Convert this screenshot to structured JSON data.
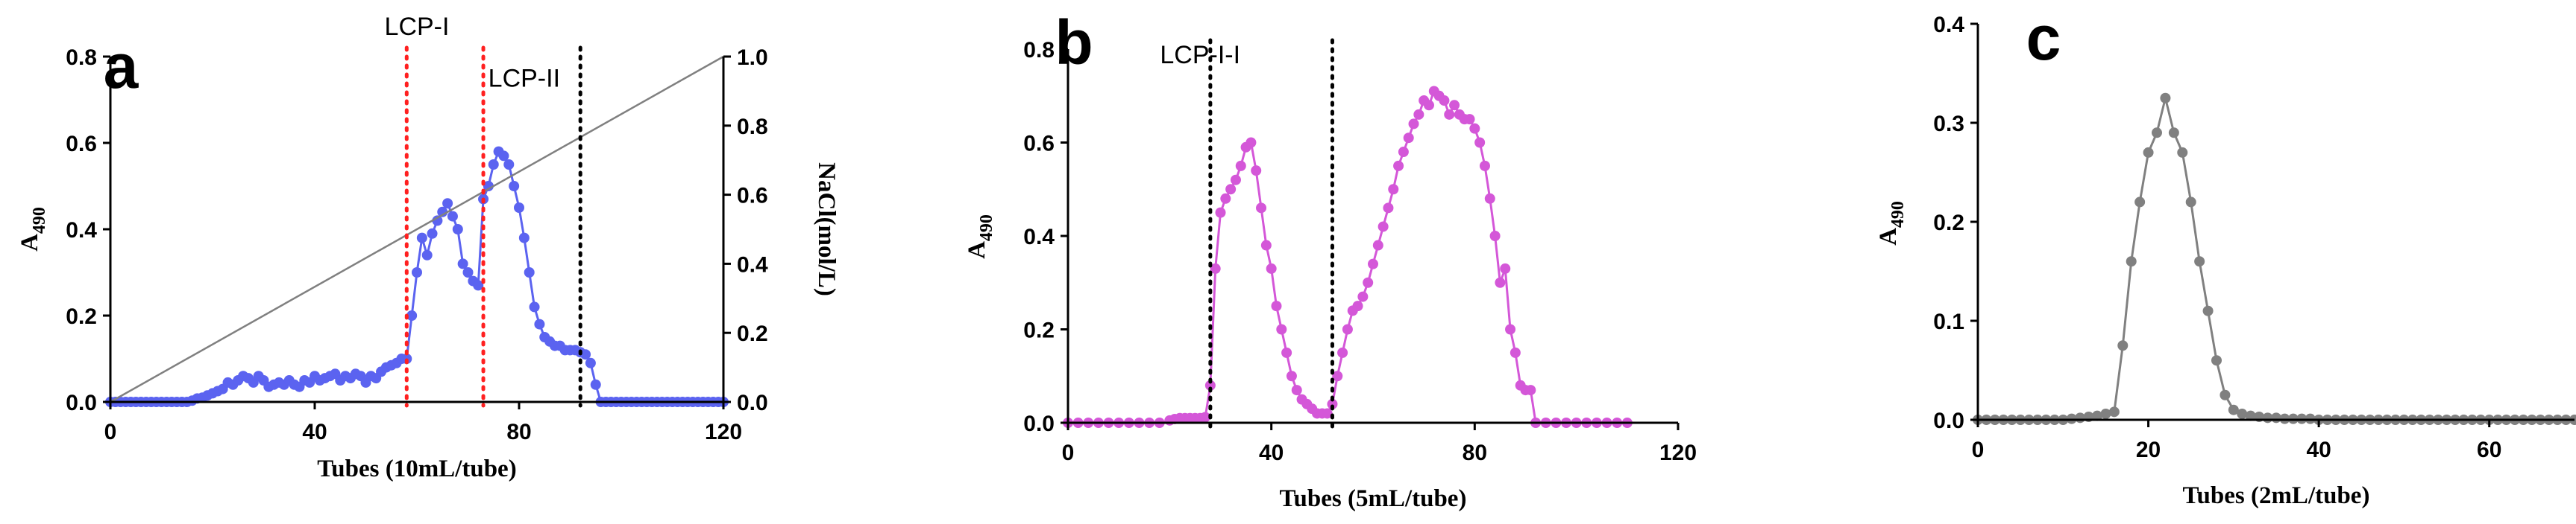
{
  "chart_data": [
    {
      "panel": "a",
      "type": "line",
      "title": "",
      "xlabel": "Tubes (10mL/tube)",
      "ylabel": "A",
      "ylabel_sub": "490",
      "y2label": "NaCl(mol/L)",
      "xlim": [
        0,
        120
      ],
      "ylim": [
        0,
        0.8
      ],
      "y2lim": [
        0,
        1.0
      ],
      "xticks": [
        "0",
        "40",
        "80",
        "120"
      ],
      "yticks": [
        "0.0",
        "0.2",
        "0.4",
        "0.6",
        "0.8"
      ],
      "y2ticks": [
        "0.0",
        "0.2",
        "0.4",
        "0.6",
        "0.8",
        "1.0"
      ],
      "series": [
        {
          "name": "A490",
          "color": "#5b63f0",
          "marker": "circle",
          "x": [
            0,
            1,
            2,
            3,
            4,
            5,
            6,
            7,
            8,
            9,
            10,
            11,
            12,
            13,
            14,
            15,
            16,
            17,
            18,
            19,
            20,
            21,
            22,
            23,
            24,
            25,
            26,
            27,
            28,
            29,
            30,
            31,
            32,
            33,
            34,
            35,
            36,
            37,
            38,
            39,
            40,
            41,
            42,
            43,
            44,
            45,
            46,
            47,
            48,
            49,
            50,
            51,
            52,
            53,
            54,
            55,
            56,
            57,
            58,
            59,
            60,
            61,
            62,
            63,
            64,
            65,
            66,
            67,
            68,
            69,
            70,
            71,
            72,
            73,
            74,
            75,
            76,
            77,
            78,
            79,
            80,
            81,
            82,
            83,
            84,
            85,
            86,
            87,
            88,
            89,
            90,
            91,
            92,
            93,
            94,
            95,
            96,
            97,
            98,
            99,
            100,
            101,
            102,
            103,
            104,
            105,
            106,
            107,
            108,
            109,
            110,
            111,
            112,
            113,
            114,
            115,
            116,
            117,
            118,
            119,
            120
          ],
          "values": [
            0,
            0,
            0,
            0,
            0,
            0,
            0,
            0,
            0,
            0,
            0,
            0,
            0,
            0,
            0,
            0,
            0.003,
            0.008,
            0.01,
            0.015,
            0.02,
            0.025,
            0.03,
            0.045,
            0.04,
            0.05,
            0.06,
            0.055,
            0.045,
            0.06,
            0.05,
            0.035,
            0.04,
            0.045,
            0.04,
            0.05,
            0.04,
            0.035,
            0.05,
            0.045,
            0.06,
            0.05,
            0.055,
            0.06,
            0.065,
            0.05,
            0.06,
            0.055,
            0.065,
            0.06,
            0.045,
            0.06,
            0.055,
            0.07,
            0.08,
            0.085,
            0.09,
            0.1,
            0.1,
            0.2,
            0.3,
            0.38,
            0.34,
            0.39,
            0.42,
            0.44,
            0.46,
            0.43,
            0.4,
            0.32,
            0.3,
            0.28,
            0.27,
            0.47,
            0.5,
            0.55,
            0.58,
            0.57,
            0.55,
            0.5,
            0.45,
            0.38,
            0.3,
            0.22,
            0.18,
            0.15,
            0.14,
            0.13,
            0.13,
            0.12,
            0.12,
            0.12,
            0.115,
            0.11,
            0.09,
            0.04,
            0,
            0,
            0,
            0,
            0,
            0,
            0,
            0,
            0,
            0,
            0,
            0,
            0,
            0,
            0,
            0,
            0,
            0,
            0,
            0,
            0,
            0,
            0,
            0,
            0
          ]
        },
        {
          "name": "NaCl",
          "color": "#808080",
          "axis": "right",
          "x": [
            0,
            120
          ],
          "values": [
            0,
            1.0
          ]
        }
      ],
      "vlines": [
        {
          "x": 58,
          "color": "#ff2020"
        },
        {
          "x": 73,
          "color": "#ff2020"
        },
        {
          "x": 92,
          "color": "#000000"
        }
      ],
      "annotations": [
        {
          "text": "LCP-I",
          "x": 60,
          "y": 0.85
        },
        {
          "text": "LCP-II",
          "x": 81,
          "y": 0.73
        }
      ]
    },
    {
      "panel": "b",
      "type": "line",
      "title": "",
      "xlabel": "Tubes (5mL/tube)",
      "ylabel": "A",
      "ylabel_sub": "490",
      "xlim": [
        0,
        120
      ],
      "ylim": [
        0,
        0.8
      ],
      "xticks": [
        "0",
        "40",
        "80",
        "120"
      ],
      "yticks": [
        "0.0",
        "0.2",
        "0.4",
        "0.6",
        "0.8"
      ],
      "series": [
        {
          "name": "A490",
          "color": "#d457d8",
          "marker": "circle",
          "x": [
            0,
            2,
            4,
            6,
            8,
            10,
            12,
            14,
            16,
            18,
            20,
            21,
            22,
            23,
            24,
            25,
            26,
            27,
            28,
            29,
            30,
            31,
            32,
            33,
            34,
            35,
            36,
            37,
            38,
            39,
            40,
            41,
            42,
            43,
            44,
            45,
            46,
            47,
            48,
            49,
            50,
            51,
            52,
            53,
            54,
            55,
            56,
            57,
            58,
            59,
            60,
            61,
            62,
            63,
            64,
            65,
            66,
            67,
            68,
            69,
            70,
            71,
            72,
            73,
            74,
            75,
            76,
            77,
            78,
            79,
            80,
            81,
            82,
            83,
            84,
            85,
            86,
            87,
            88,
            89,
            90,
            91,
            92,
            94,
            96,
            98,
            100,
            102,
            104,
            106,
            108,
            110
          ],
          "values": [
            0,
            0,
            0,
            0,
            0,
            0,
            0,
            0,
            0,
            0,
            0.005,
            0.008,
            0.01,
            0.01,
            0.01,
            0.01,
            0.01,
            0.012,
            0.08,
            0.33,
            0.45,
            0.48,
            0.5,
            0.52,
            0.55,
            0.59,
            0.6,
            0.54,
            0.46,
            0.38,
            0.33,
            0.25,
            0.2,
            0.15,
            0.1,
            0.07,
            0.05,
            0.04,
            0.03,
            0.02,
            0.02,
            0.02,
            0.04,
            0.1,
            0.15,
            0.2,
            0.24,
            0.25,
            0.27,
            0.3,
            0.34,
            0.38,
            0.42,
            0.46,
            0.5,
            0.55,
            0.58,
            0.61,
            0.64,
            0.66,
            0.69,
            0.68,
            0.71,
            0.7,
            0.69,
            0.66,
            0.68,
            0.66,
            0.65,
            0.65,
            0.63,
            0.6,
            0.55,
            0.48,
            0.4,
            0.3,
            0.33,
            0.2,
            0.15,
            0.08,
            0.07,
            0.07,
            0,
            0,
            0,
            0,
            0,
            0,
            0,
            0,
            0,
            0
          ]
        }
      ],
      "vlines": [
        {
          "x": 28,
          "color": "#000000"
        },
        {
          "x": 52,
          "color": "#000000"
        }
      ],
      "annotations": [
        {
          "text": "LCP-I-I",
          "x": 26,
          "y": 0.77
        }
      ]
    },
    {
      "panel": "c",
      "type": "line",
      "title": "",
      "xlabel": "Tubes (2mL/tube)",
      "ylabel": "A",
      "ylabel_sub": "490",
      "xlim": [
        0,
        70
      ],
      "ylim": [
        0,
        0.4
      ],
      "xticks": [
        "0",
        "20",
        "40",
        "60"
      ],
      "yticks": [
        "0.0",
        "0.1",
        "0.2",
        "0.3",
        "0.4"
      ],
      "series": [
        {
          "name": "A490",
          "color": "#808080",
          "marker": "circle",
          "x": [
            0,
            1,
            2,
            3,
            4,
            5,
            6,
            7,
            8,
            9,
            10,
            11,
            12,
            13,
            14,
            15,
            16,
            17,
            18,
            19,
            20,
            21,
            22,
            23,
            24,
            25,
            26,
            27,
            28,
            29,
            30,
            31,
            32,
            33,
            34,
            35,
            36,
            37,
            38,
            39,
            40,
            41,
            42,
            43,
            44,
            45,
            46,
            47,
            48,
            49,
            50,
            51,
            52,
            53,
            54,
            55,
            56,
            57,
            58,
            59,
            60,
            61,
            62,
            63,
            64,
            65,
            66,
            67,
            68,
            69,
            70
          ],
          "values": [
            0,
            0,
            0,
            0,
            0,
            0,
            0,
            0,
            0,
            0,
            0,
            0.001,
            0.002,
            0.003,
            0.004,
            0.006,
            0.008,
            0.075,
            0.16,
            0.22,
            0.27,
            0.29,
            0.325,
            0.29,
            0.27,
            0.22,
            0.16,
            0.11,
            0.06,
            0.025,
            0.01,
            0.006,
            0.004,
            0.003,
            0.002,
            0.002,
            0.001,
            0.001,
            0.001,
            0.001,
            0,
            0,
            0,
            0,
            0,
            0,
            0,
            0,
            0,
            0,
            0,
            0,
            0,
            0,
            0,
            0,
            0,
            0,
            0,
            0,
            0,
            0,
            0,
            0,
            0,
            0,
            0,
            0,
            0,
            0,
            0
          ]
        }
      ],
      "vlines": [],
      "annotations": []
    }
  ]
}
